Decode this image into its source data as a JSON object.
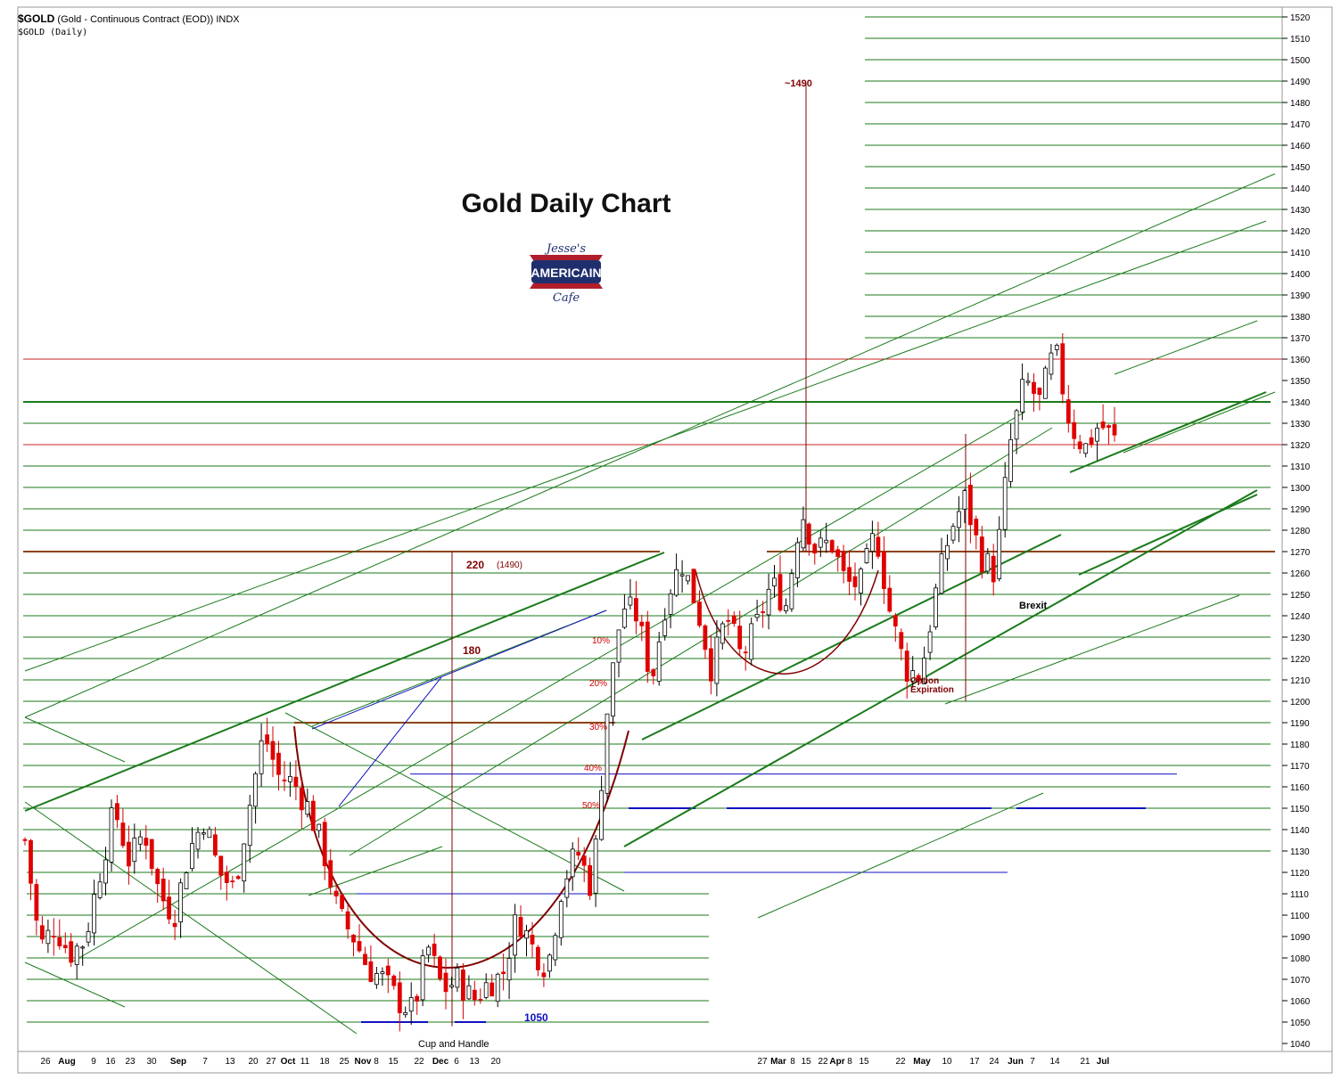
{
  "header": {
    "symbol": "$GOLD",
    "description": "(Gold - Continuous Contract (EOD))",
    "exchange": "INDX",
    "subtitle": "$GOLD (Daily)"
  },
  "logo": {
    "line1": "Jesse's",
    "line2": "AMERICAIN",
    "line3": "Cafe"
  },
  "chart_data": {
    "type": "candlestick",
    "title": "Gold Daily Chart",
    "ylim": [
      1035,
      1525
    ],
    "y_ticks": [
      1040,
      1050,
      1060,
      1070,
      1080,
      1090,
      1100,
      1110,
      1120,
      1130,
      1140,
      1150,
      1160,
      1170,
      1180,
      1190,
      1200,
      1210,
      1220,
      1230,
      1240,
      1250,
      1260,
      1270,
      1280,
      1290,
      1300,
      1310,
      1320,
      1330,
      1340,
      1350,
      1360,
      1370,
      1380,
      1390,
      1400,
      1410,
      1420,
      1430,
      1440,
      1450,
      1460,
      1470,
      1480,
      1490,
      1500,
      1510,
      1520
    ],
    "x_labels": [
      {
        "text": "26",
        "bold": false
      },
      {
        "text": "Aug",
        "bold": true
      },
      {
        "text": "9",
        "bold": false
      },
      {
        "text": "16",
        "bold": false
      },
      {
        "text": "23",
        "bold": false
      },
      {
        "text": "30",
        "bold": false
      },
      {
        "text": "Sep",
        "bold": true
      },
      {
        "text": "7",
        "bold": false
      },
      {
        "text": "13",
        "bold": false
      },
      {
        "text": "20",
        "bold": false
      },
      {
        "text": "27",
        "bold": false
      },
      {
        "text": "Oct",
        "bold": true
      },
      {
        "text": "11",
        "bold": false
      },
      {
        "text": "18",
        "bold": false
      },
      {
        "text": "25",
        "bold": false
      },
      {
        "text": "Nov",
        "bold": true
      },
      {
        "text": "8",
        "bold": false
      },
      {
        "text": "15",
        "bold": false
      },
      {
        "text": "22",
        "bold": false
      },
      {
        "text": "Dec",
        "bold": true
      },
      {
        "text": "6",
        "bold": false
      },
      {
        "text": "13",
        "bold": false
      },
      {
        "text": "20",
        "bold": false
      },
      {
        "text": "27",
        "bold": false
      },
      {
        "text": "Mar",
        "bold": true
      },
      {
        "text": "8",
        "bold": false
      },
      {
        "text": "15",
        "bold": false
      },
      {
        "text": "22",
        "bold": false
      },
      {
        "text": "Apr",
        "bold": true
      },
      {
        "text": "8",
        "bold": false
      },
      {
        "text": "15",
        "bold": false
      },
      {
        "text": "22",
        "bold": false
      },
      {
        "text": "May",
        "bold": true
      },
      {
        "text": "10",
        "bold": false
      },
      {
        "text": "17",
        "bold": false
      },
      {
        "text": "24",
        "bold": false
      },
      {
        "text": "Jun",
        "bold": true
      },
      {
        "text": "7",
        "bold": false
      },
      {
        "text": "14",
        "bold": false
      },
      {
        "text": "21",
        "bold": false
      },
      {
        "text": "Jul",
        "bold": true
      }
    ],
    "price_anchors": [
      1135,
      1085,
      1095,
      1082,
      1088,
      1120,
      1150,
      1125,
      1140,
      1110,
      1100,
      1130,
      1145,
      1120,
      1112,
      1150,
      1185,
      1165,
      1162,
      1150,
      1130,
      1100,
      1090,
      1075,
      1070,
      1060,
      1055,
      1085,
      1065,
      1070,
      1060,
      1068,
      1072,
      1100,
      1085,
      1075,
      1115,
      1130,
      1112,
      1195,
      1245,
      1240,
      1210,
      1250,
      1265,
      1245,
      1215,
      1240,
      1220,
      1235,
      1255,
      1245,
      1290,
      1270,
      1275,
      1255,
      1255,
      1280,
      1240,
      1215,
      1212,
      1250,
      1280,
      1295,
      1268,
      1260,
      1320,
      1350,
      1340,
      1365,
      1330,
      1318,
      1330,
      1322
    ],
    "annotations": {
      "target_1490": "~1490",
      "measure_220": "220",
      "measure_1490": "(1490)",
      "measure_180": "180",
      "fib_10": "10%",
      "fib_20": "20%",
      "fib_30": "30%",
      "fib_40": "40%",
      "fib_50": "50%",
      "cup_and_handle": "Cup and Handle",
      "level_1050": "1050",
      "brexit": "Brexit",
      "option_expiration_1": "Option",
      "option_expiration_2": "Expiration"
    }
  }
}
